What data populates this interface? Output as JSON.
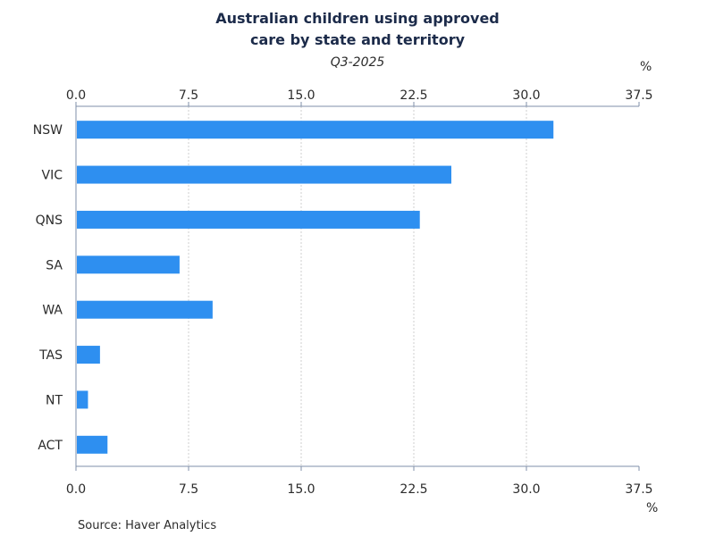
{
  "chart_data": {
    "type": "bar",
    "orientation": "horizontal",
    "title_lines": [
      "Australian children using approved",
      "care by state and territory"
    ],
    "subtitle": "Q3-2025",
    "unit_label": "%",
    "source": "Source:  Haver Analytics",
    "categories": [
      "NSW",
      "VIC",
      "QNS",
      "SA",
      "WA",
      "TAS",
      "NT",
      "ACT"
    ],
    "values": [
      31.8,
      25.0,
      22.9,
      6.9,
      9.1,
      1.6,
      0.8,
      2.1
    ],
    "xlim": [
      0,
      37.5
    ],
    "ticks": [
      0,
      7.5,
      15,
      22.5,
      30,
      37.5
    ],
    "tick_labels": [
      "0.0",
      "7.5",
      "15.0",
      "22.5",
      "30.0",
      "37.5"
    ],
    "grid": true,
    "bar_color": "#2e8ff0",
    "axis_color": "#7f8fa8",
    "grid_color": "#cfcfcf"
  }
}
